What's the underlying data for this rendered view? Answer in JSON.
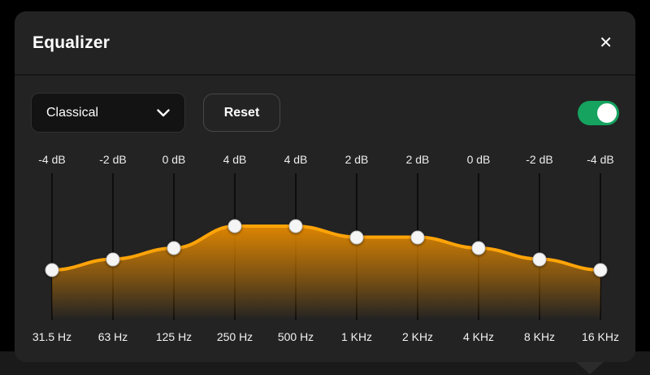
{
  "panel": {
    "title": "Equalizer",
    "close_glyph": "✕"
  },
  "controls": {
    "preset_value": "Classical",
    "reset_label": "Reset",
    "toggle_state": "on"
  },
  "equalizer": {
    "bands": [
      {
        "freq_label": "31.5 Hz",
        "gain_label": "-4 dB",
        "gain_db": -4
      },
      {
        "freq_label": "63 Hz",
        "gain_label": "-2 dB",
        "gain_db": -2
      },
      {
        "freq_label": "125 Hz",
        "gain_label": "0 dB",
        "gain_db": 0
      },
      {
        "freq_label": "250 Hz",
        "gain_label": "4 dB",
        "gain_db": 4
      },
      {
        "freq_label": "500 Hz",
        "gain_label": "4 dB",
        "gain_db": 4
      },
      {
        "freq_label": "1 KHz",
        "gain_label": "2 dB",
        "gain_db": 2
      },
      {
        "freq_label": "2 KHz",
        "gain_label": "2 dB",
        "gain_db": 2
      },
      {
        "freq_label": "4 KHz",
        "gain_label": "0 dB",
        "gain_db": 0
      },
      {
        "freq_label": "8 KHz",
        "gain_label": "-2 dB",
        "gain_db": -2
      },
      {
        "freq_label": "16 KHz",
        "gain_label": "-4 dB",
        "gain_db": -4
      }
    ]
  },
  "colors": {
    "curve_orange": "#FFA408",
    "fill_orange": "#E68A00",
    "toggle_green": "#15A35F",
    "knob_white": "#F5F5F5",
    "panel_bg": "#232323"
  }
}
